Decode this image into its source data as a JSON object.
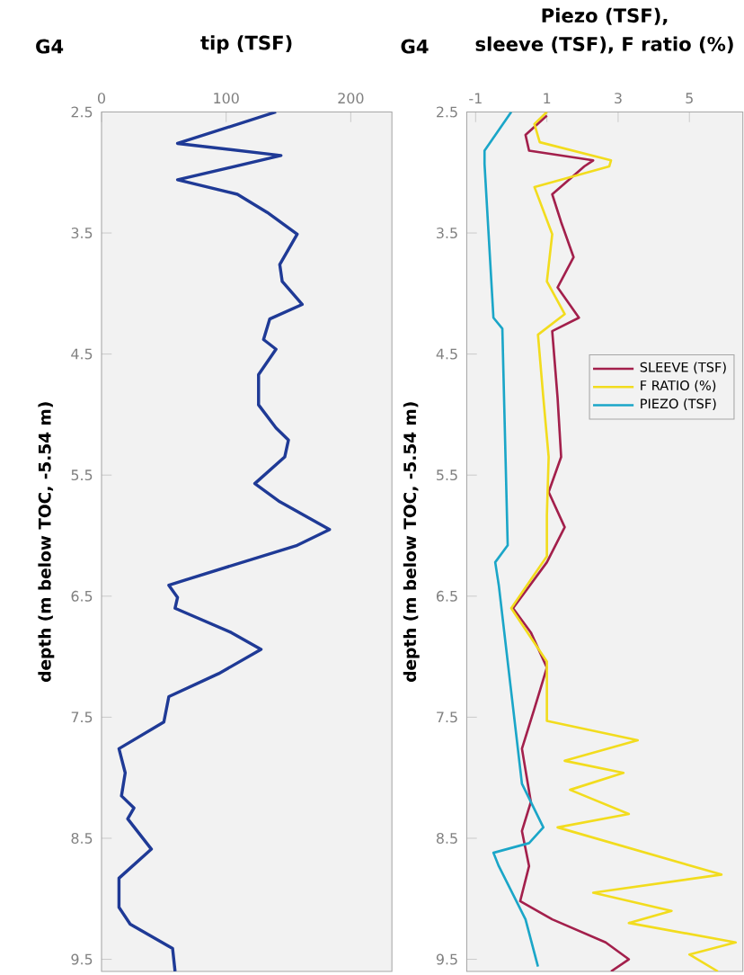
{
  "chart_data": [
    {
      "type": "line",
      "title": "tip (TSF)",
      "ylabel": "depth (m below TOC, -5.54 m)",
      "annotations": [
        "G4"
      ],
      "xlim": [
        0,
        233
      ],
      "xticks": [
        0,
        100,
        200
      ],
      "ylim": [
        9.6,
        2.5
      ],
      "yticks": [
        2.5,
        3.5,
        4.5,
        5.5,
        6.5,
        7.5,
        8.5,
        9.5
      ],
      "grid": false,
      "legend": false,
      "marker": "none",
      "line_style": "solid",
      "series": [
        {
          "color": "#1f3a96",
          "x": [
            140,
            61,
            144,
            61,
            109,
            133,
            157,
            143,
            145,
            161,
            135,
            130,
            140,
            126,
            126,
            140,
            150,
            147,
            123,
            143,
            183,
            157,
            66,
            54,
            61,
            59,
            104,
            128,
            94,
            54,
            50,
            14,
            19,
            16,
            26,
            21,
            40,
            14,
            14,
            23,
            57,
            59
          ],
          "values": [
            2.5,
            2.76,
            2.86,
            3.06,
            3.18,
            3.33,
            3.51,
            3.76,
            3.9,
            4.09,
            4.21,
            4.38,
            4.46,
            4.67,
            4.92,
            5.11,
            5.21,
            5.35,
            5.57,
            5.72,
            5.95,
            6.08,
            6.37,
            6.41,
            6.51,
            6.6,
            6.8,
            6.94,
            7.14,
            7.33,
            7.54,
            7.76,
            7.96,
            8.15,
            8.25,
            8.34,
            8.59,
            8.83,
            9.07,
            9.21,
            9.41,
            9.6
          ]
        }
      ]
    },
    {
      "type": "line",
      "title": "Piezo (TSF),",
      "subtitle": "sleeve (TSF), F ratio (%)",
      "ylabel": "depth (m below TOC, -5.54 m)",
      "annotations": [
        "G4"
      ],
      "xlim": [
        -1.25,
        6.5
      ],
      "xticks": [
        -1,
        1,
        3,
        5
      ],
      "ylim": [
        9.6,
        2.5
      ],
      "yticks": [
        2.5,
        3.5,
        4.5,
        5.5,
        6.5,
        7.5,
        8.5,
        9.5
      ],
      "grid": false,
      "legend": "right",
      "marker": "none",
      "line_style": "solid",
      "series": [
        {
          "name": "SLEEVE (TSF)",
          "color": "#a3204c",
          "x": [
            1.0,
            0.4,
            0.5,
            2.3,
            2.05,
            1.15,
            1.4,
            1.75,
            1.3,
            1.9,
            1.15,
            1.3,
            1.4,
            1.05,
            1.5,
            1.0,
            0.05,
            0.55,
            1.0,
            0.65,
            0.3,
            0.55,
            0.3,
            0.5,
            0.25,
            1.15,
            2.65,
            3.3,
            2.8
          ],
          "values": [
            2.53,
            2.69,
            2.82,
            2.9,
            2.95,
            3.18,
            3.41,
            3.7,
            3.95,
            4.2,
            4.31,
            4.86,
            5.35,
            5.64,
            5.93,
            6.22,
            6.6,
            6.8,
            7.09,
            7.43,
            7.76,
            8.2,
            8.44,
            8.73,
            9.02,
            9.17,
            9.36,
            9.5,
            9.6
          ]
        },
        {
          "name": "F RATIO (%)",
          "color": "#f2dc1e",
          "x": [
            1.0,
            0.65,
            0.8,
            2.8,
            2.75,
            0.65,
            1.15,
            1.0,
            1.5,
            0.75,
            0.9,
            1.05,
            1.0,
            1.0,
            0.0,
            1.0,
            1.0,
            3.55,
            1.5,
            3.15,
            1.65,
            3.3,
            1.3,
            5.9,
            2.3,
            4.5,
            3.3,
            6.3,
            5.0,
            5.8
          ],
          "values": [
            2.5,
            2.6,
            2.75,
            2.9,
            2.95,
            3.12,
            3.51,
            3.9,
            4.17,
            4.34,
            4.86,
            5.35,
            5.83,
            6.17,
            6.6,
            7.04,
            7.53,
            7.69,
            7.86,
            7.96,
            8.1,
            8.3,
            8.41,
            8.8,
            8.95,
            9.1,
            9.2,
            9.36,
            9.46,
            9.6
          ]
        },
        {
          "name": "PIEZO (TSF)",
          "color": "#1ba6c8",
          "x": [
            0.0,
            -0.75,
            -0.75,
            -0.5,
            -0.25,
            -0.1,
            -0.45,
            -0.35,
            0.3,
            0.9,
            0.5,
            -0.5,
            -0.35,
            0.4,
            0.75
          ],
          "values": [
            2.5,
            2.82,
            2.93,
            4.2,
            4.29,
            6.08,
            6.22,
            6.41,
            8.05,
            8.41,
            8.54,
            8.62,
            8.73,
            9.17,
            9.56
          ]
        }
      ]
    }
  ]
}
